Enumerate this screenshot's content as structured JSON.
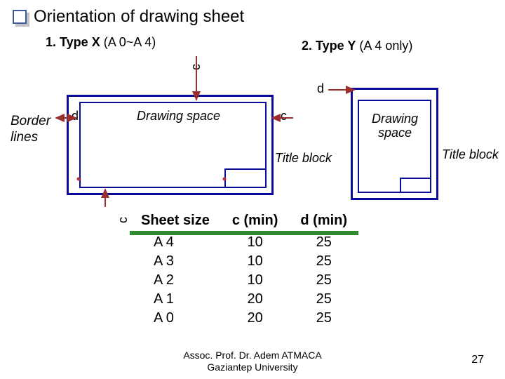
{
  "title": "Orientation of drawing sheet",
  "type1": {
    "boldlabel": "1. Type X",
    "rest": " (A 0~A 4)"
  },
  "type2": {
    "boldlabel": "2. Type Y",
    "rest": " (A 4 only)"
  },
  "labels": {
    "drawing_space": "Drawing space",
    "title_block": "Title block",
    "border_lines": "Border\nlines",
    "c": "c",
    "d": "d"
  },
  "table": {
    "headers": [
      "Sheet size",
      "c (min)",
      "d (min)"
    ],
    "rows": [
      [
        "A 4",
        "10",
        "25"
      ],
      [
        "A 3",
        "10",
        "25"
      ],
      [
        "A 2",
        "10",
        "25"
      ],
      [
        "A 1",
        "20",
        "25"
      ],
      [
        "A 0",
        "20",
        "25"
      ]
    ]
  },
  "footer": {
    "line1": "Assoc. Prof. Dr. Adem ATMACA",
    "line2": "Gaziantep University"
  },
  "page": "27",
  "colors": {
    "sheet_border": "#0b0b99",
    "arrow": "#9a2f2f",
    "dot": "#b8323a",
    "table_rule": "#2e8b2e",
    "bullet_border": "#3b5b9b"
  }
}
